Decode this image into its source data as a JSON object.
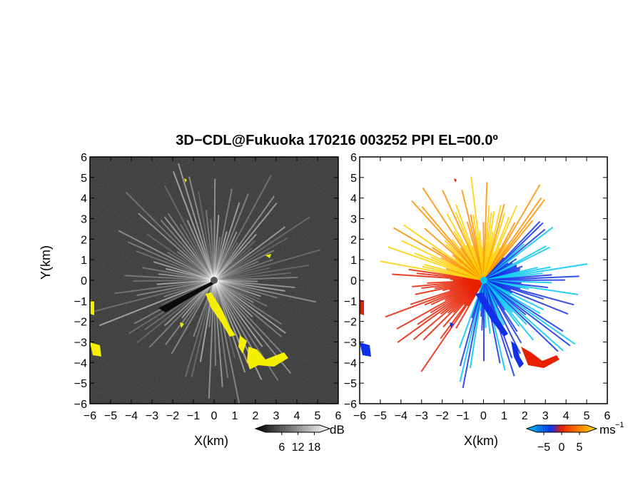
{
  "chart_data": [
    {
      "type": "heatmap",
      "panel": "reflectivity",
      "title": "3D−CDL@Fukuoka 170216 003252 PPI EL=00.0º",
      "xlabel": "X(km)",
      "ylabel": "Y(km)",
      "xlim": [
        -6,
        6
      ],
      "ylim": [
        -6,
        6
      ],
      "xticks": [
        "−6",
        "−5",
        "−4",
        "−3",
        "−2",
        "−1",
        "0",
        "1",
        "2",
        "3",
        "4",
        "5",
        "6"
      ],
      "yticks": [
        "6",
        "5",
        "4",
        "3",
        "2",
        "1",
        "0",
        "−1",
        "−2",
        "−3",
        "−4",
        "−5",
        "−6"
      ],
      "colorbar": {
        "unit": "dB",
        "ticks": [
          "6",
          "12",
          "18"
        ],
        "tick_values": [
          6,
          12,
          18
        ]
      },
      "highlight_color": "#f5f000",
      "background_color": "#2b2b2b"
    },
    {
      "type": "heatmap",
      "panel": "doppler-velocity",
      "xlabel": "X(km)",
      "xlim": [
        -6,
        6
      ],
      "ylim": [
        -6,
        6
      ],
      "xticks": [
        "−6",
        "−5",
        "−4",
        "−3",
        "−2",
        "−1",
        "0",
        "1",
        "2",
        "3",
        "4",
        "5",
        "6"
      ],
      "yticks": [
        "6",
        "5",
        "4",
        "3",
        "2",
        "1",
        "0",
        "−1",
        "−2",
        "−3",
        "−4",
        "−5",
        "−6"
      ],
      "colorbar": {
        "unit": "ms",
        "unit_exponent": "−1",
        "ticks": [
          "−5",
          "0",
          "5"
        ],
        "tick_values": [
          -5,
          0,
          5
        ]
      },
      "colors": {
        "negative": "#1030e8",
        "near_zero": "#00c8f0",
        "positive_low": "#ffd000",
        "positive_high": "#e82000"
      }
    }
  ]
}
